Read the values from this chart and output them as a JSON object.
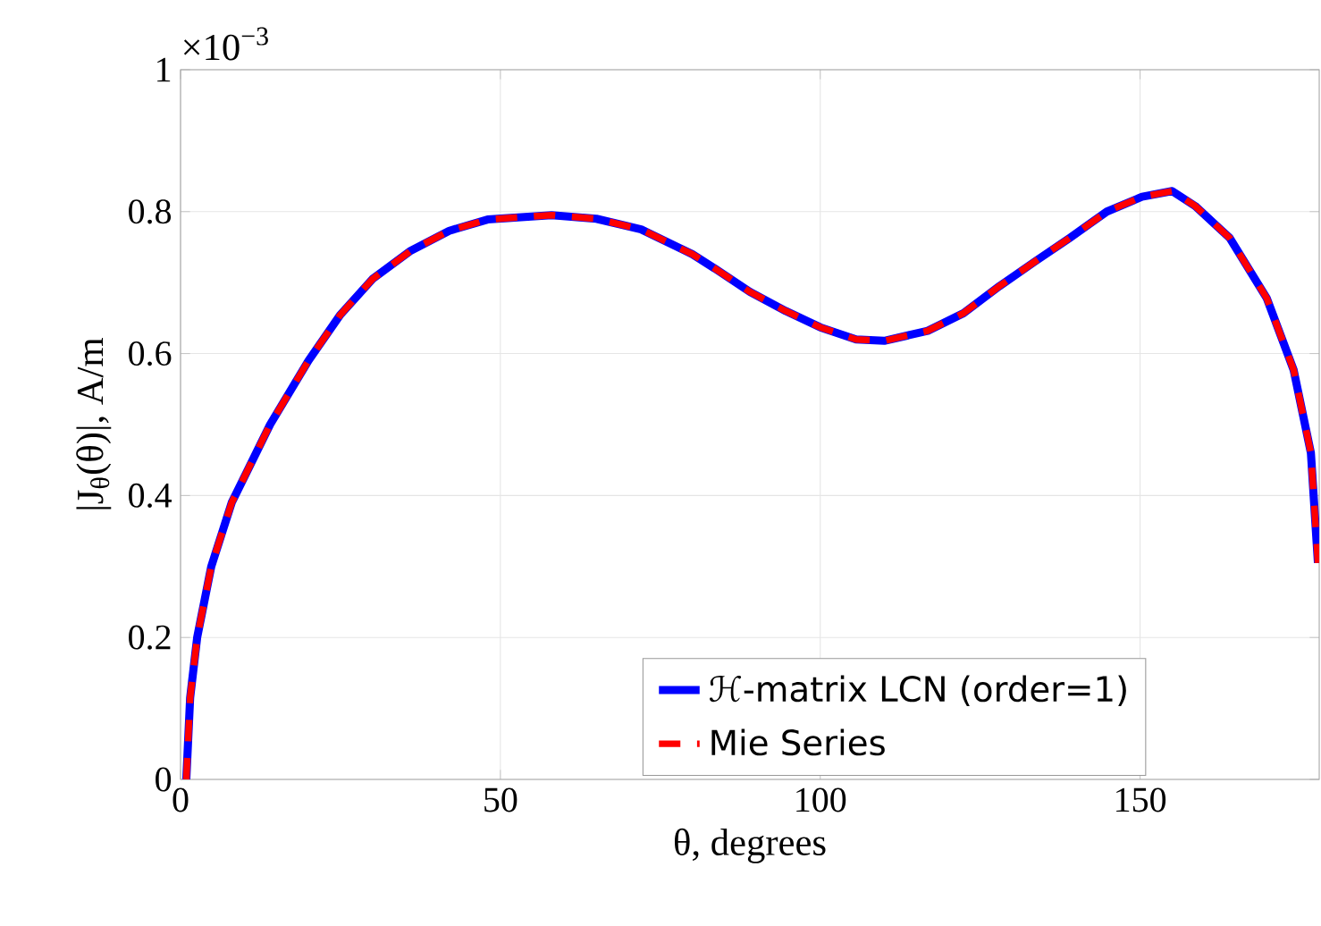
{
  "chart_data": {
    "type": "line",
    "xlabel": "θ, degrees",
    "ylabel": "|J$_{θ}$(θ)|, A/m",
    "annotations": [
      "×10$^{−3}$"
    ],
    "x": [
      0.9,
      1.5,
      2.6,
      4.8,
      8,
      14,
      20,
      25,
      30,
      36,
      42,
      48,
      58,
      65,
      72,
      80,
      83.5,
      89,
      94.6,
      100,
      105.6,
      110,
      116.8,
      122.4,
      128,
      133.6,
      139,
      144.8,
      150.3,
      155,
      158.6,
      164,
      169.8,
      174,
      176.7,
      177.8
    ],
    "series": [
      {
        "name": "ℋ-matrix LCN (order=1)",
        "color": "#0000ff",
        "line_style": "solid",
        "values": [
          0,
          0.115,
          0.2,
          0.3,
          0.39,
          0.5,
          0.59,
          0.655,
          0.705,
          0.745,
          0.773,
          0.789,
          0.795,
          0.79,
          0.775,
          0.74,
          0.72,
          0.687,
          0.66,
          0.637,
          0.62,
          0.618,
          0.632,
          0.657,
          0.695,
          0.73,
          0.763,
          0.8,
          0.821,
          0.829,
          0.808,
          0.763,
          0.678,
          0.577,
          0.46,
          0.305
        ]
      },
      {
        "name": "Mie Series",
        "color": "#ff0000",
        "line_style": "dashed",
        "values": [
          0,
          0.115,
          0.2,
          0.3,
          0.39,
          0.5,
          0.59,
          0.655,
          0.705,
          0.745,
          0.773,
          0.789,
          0.795,
          0.79,
          0.775,
          0.74,
          0.72,
          0.687,
          0.66,
          0.637,
          0.62,
          0.618,
          0.632,
          0.657,
          0.695,
          0.73,
          0.763,
          0.8,
          0.821,
          0.829,
          0.808,
          0.763,
          0.678,
          0.577,
          0.46,
          0.305
        ]
      }
    ],
    "xlim": [
      0,
      178
    ],
    "ylim": [
      0,
      1
    ],
    "xticks": [
      0,
      50,
      100,
      150
    ],
    "yticks": [
      0,
      0.2,
      0.4,
      0.6,
      0.8,
      1
    ],
    "grid": true,
    "legend": "bottom right",
    "marker": "none"
  }
}
